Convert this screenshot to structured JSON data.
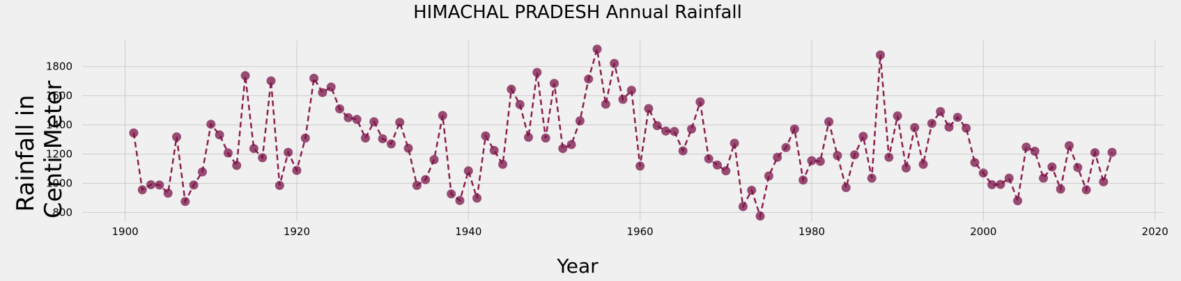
{
  "chart_data": {
    "type": "line",
    "title": "HIMACHAL PRADESH Annual Rainfall",
    "xlabel": "Year",
    "ylabel_lines": [
      "Rainfall in",
      "Centi Meter"
    ],
    "xlim": [
      1895,
      2021
    ],
    "ylim": [
      740,
      1980
    ],
    "xticks": [
      1900,
      1920,
      1940,
      1960,
      1980,
      2000,
      2020
    ],
    "yticks": [
      800,
      1000,
      1200,
      1400,
      1600,
      1800
    ],
    "grid": true,
    "line_style": "dashed",
    "marker": "circle",
    "colors": {
      "line": "#8b1e4f",
      "marker": "#7a1448",
      "background": "#f0f0f0",
      "grid": "#cbcbcb"
    },
    "x": [
      1901,
      1902,
      1903,
      1904,
      1905,
      1906,
      1907,
      1908,
      1909,
      1910,
      1911,
      1912,
      1913,
      1914,
      1915,
      1916,
      1917,
      1918,
      1919,
      1920,
      1921,
      1922,
      1923,
      1924,
      1925,
      1926,
      1927,
      1928,
      1929,
      1930,
      1931,
      1932,
      1933,
      1934,
      1935,
      1936,
      1937,
      1938,
      1939,
      1940,
      1941,
      1942,
      1943,
      1944,
      1945,
      1946,
      1947,
      1948,
      1949,
      1950,
      1951,
      1952,
      1953,
      1954,
      1955,
      1956,
      1957,
      1958,
      1959,
      1960,
      1961,
      1962,
      1963,
      1964,
      1965,
      1966,
      1967,
      1968,
      1969,
      1970,
      1971,
      1972,
      1973,
      1974,
      1975,
      1976,
      1977,
      1978,
      1979,
      1980,
      1981,
      1982,
      1983,
      1984,
      1985,
      1986,
      1987,
      1988,
      1989,
      1990,
      1991,
      1992,
      1993,
      1994,
      1995,
      1996,
      1997,
      1998,
      1999,
      2000,
      2001,
      2002,
      2003,
      2004,
      2005,
      2006,
      2007,
      2008,
      2009,
      2010,
      2011,
      2012,
      2013,
      2014,
      2015
    ],
    "values": [
      1345,
      955,
      990,
      988,
      932,
      1318,
      875,
      988,
      1078,
      1405,
      1332,
      1208,
      1122,
      1738,
      1238,
      1175,
      1702,
      985,
      1212,
      1088,
      1310,
      1720,
      1622,
      1660,
      1510,
      1450,
      1438,
      1310,
      1422,
      1305,
      1270,
      1418,
      1240,
      985,
      1025,
      1162,
      1465,
      927,
      882,
      1085,
      898,
      1325,
      1225,
      1130,
      1645,
      1540,
      1315,
      1760,
      1310,
      1685,
      1238,
      1265,
      1428,
      1715,
      1920,
      1542,
      1822,
      1575,
      1638,
      1118,
      1512,
      1395,
      1358,
      1355,
      1222,
      1372,
      1558,
      1168,
      1125,
      1085,
      1275,
      840,
      952,
      775,
      1050,
      1178,
      1245,
      1372,
      1022,
      1155,
      1150,
      1422,
      1190,
      970,
      1195,
      1322,
      1035,
      1880,
      1178,
      1462,
      1105,
      1382,
      1130,
      1410,
      1492,
      1385,
      1452,
      1378,
      1142,
      1070,
      990,
      992,
      1035,
      880,
      1248,
      1220,
      1035,
      1112,
      960,
      1258,
      1108,
      955,
      1210,
      1010,
      1212
    ]
  }
}
